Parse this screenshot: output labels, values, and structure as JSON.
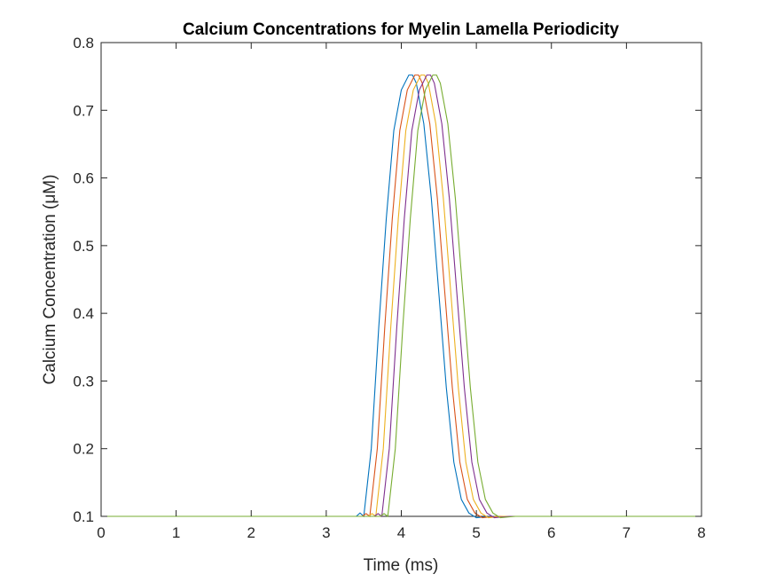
{
  "chart_data": {
    "type": "line",
    "title": "Calcium Concentrations for Myelin Lamella Periodicity",
    "xlabel": "Time (ms)",
    "ylabel": "Calcium Concentration (μM)",
    "xlim": [
      0,
      8
    ],
    "ylim": [
      0.1,
      0.8
    ],
    "xticks": [
      0,
      1,
      2,
      3,
      4,
      5,
      6,
      7,
      8
    ],
    "yticks": [
      0.1,
      0.2,
      0.3,
      0.4,
      0.5,
      0.6,
      0.7,
      0.8
    ],
    "xtick_labels": [
      "0",
      "1",
      "2",
      "3",
      "4",
      "5",
      "6",
      "7",
      "8"
    ],
    "ytick_labels": [
      "0.1",
      "0.2",
      "0.3",
      "0.4",
      "0.5",
      "0.6",
      "0.7",
      "0.8"
    ],
    "grid": false,
    "legend": false,
    "series": [
      {
        "color": "#0072BD",
        "x": [
          0,
          3.4,
          3.45,
          3.5,
          3.6,
          3.7,
          3.8,
          3.9,
          4.0,
          4.1,
          4.15,
          4.2,
          4.3,
          4.4,
          4.5,
          4.6,
          4.7,
          4.8,
          4.9,
          5.0,
          5.1,
          5.2,
          8
        ],
        "y": [
          0.1,
          0.1,
          0.105,
          0.1,
          0.2,
          0.38,
          0.54,
          0.67,
          0.73,
          0.752,
          0.752,
          0.74,
          0.68,
          0.57,
          0.43,
          0.29,
          0.18,
          0.125,
          0.105,
          0.098,
          0.099,
          0.1,
          0.1
        ]
      },
      {
        "color": "#D95319",
        "x": [
          0,
          3.48,
          3.53,
          3.58,
          3.68,
          3.78,
          3.88,
          3.98,
          4.08,
          4.18,
          4.23,
          4.28,
          4.38,
          4.48,
          4.58,
          4.68,
          4.78,
          4.88,
          4.98,
          5.08,
          5.18,
          5.28,
          8
        ],
        "y": [
          0.1,
          0.1,
          0.104,
          0.1,
          0.2,
          0.38,
          0.54,
          0.67,
          0.73,
          0.752,
          0.752,
          0.74,
          0.68,
          0.57,
          0.43,
          0.29,
          0.18,
          0.125,
          0.105,
          0.098,
          0.099,
          0.1,
          0.1
        ]
      },
      {
        "color": "#EDB120",
        "x": [
          0,
          3.56,
          3.61,
          3.66,
          3.76,
          3.86,
          3.96,
          4.06,
          4.16,
          4.26,
          4.31,
          4.36,
          4.46,
          4.56,
          4.66,
          4.76,
          4.86,
          4.96,
          5.06,
          5.16,
          5.26,
          5.36,
          8
        ],
        "y": [
          0.1,
          0.1,
          0.104,
          0.1,
          0.2,
          0.38,
          0.54,
          0.67,
          0.73,
          0.752,
          0.752,
          0.74,
          0.68,
          0.57,
          0.43,
          0.29,
          0.18,
          0.125,
          0.105,
          0.098,
          0.099,
          0.1,
          0.1
        ]
      },
      {
        "color": "#7E2F8E",
        "x": [
          0,
          3.64,
          3.69,
          3.74,
          3.84,
          3.94,
          4.04,
          4.14,
          4.24,
          4.34,
          4.39,
          4.44,
          4.54,
          4.64,
          4.74,
          4.84,
          4.94,
          5.04,
          5.14,
          5.24,
          5.34,
          5.44,
          8
        ],
        "y": [
          0.1,
          0.1,
          0.104,
          0.1,
          0.2,
          0.38,
          0.54,
          0.67,
          0.73,
          0.752,
          0.752,
          0.74,
          0.68,
          0.57,
          0.43,
          0.29,
          0.18,
          0.125,
          0.105,
          0.098,
          0.099,
          0.1,
          0.1
        ]
      },
      {
        "color": "#77AC30",
        "x": [
          0,
          3.72,
          3.77,
          3.82,
          3.92,
          4.02,
          4.12,
          4.22,
          4.32,
          4.42,
          4.47,
          4.52,
          4.62,
          4.72,
          4.82,
          4.92,
          5.02,
          5.12,
          5.22,
          5.32,
          5.42,
          5.52,
          8
        ],
        "y": [
          0.1,
          0.1,
          0.104,
          0.1,
          0.2,
          0.38,
          0.54,
          0.67,
          0.73,
          0.752,
          0.752,
          0.74,
          0.68,
          0.57,
          0.43,
          0.29,
          0.18,
          0.125,
          0.105,
          0.098,
          0.099,
          0.1,
          0.1
        ]
      }
    ]
  }
}
